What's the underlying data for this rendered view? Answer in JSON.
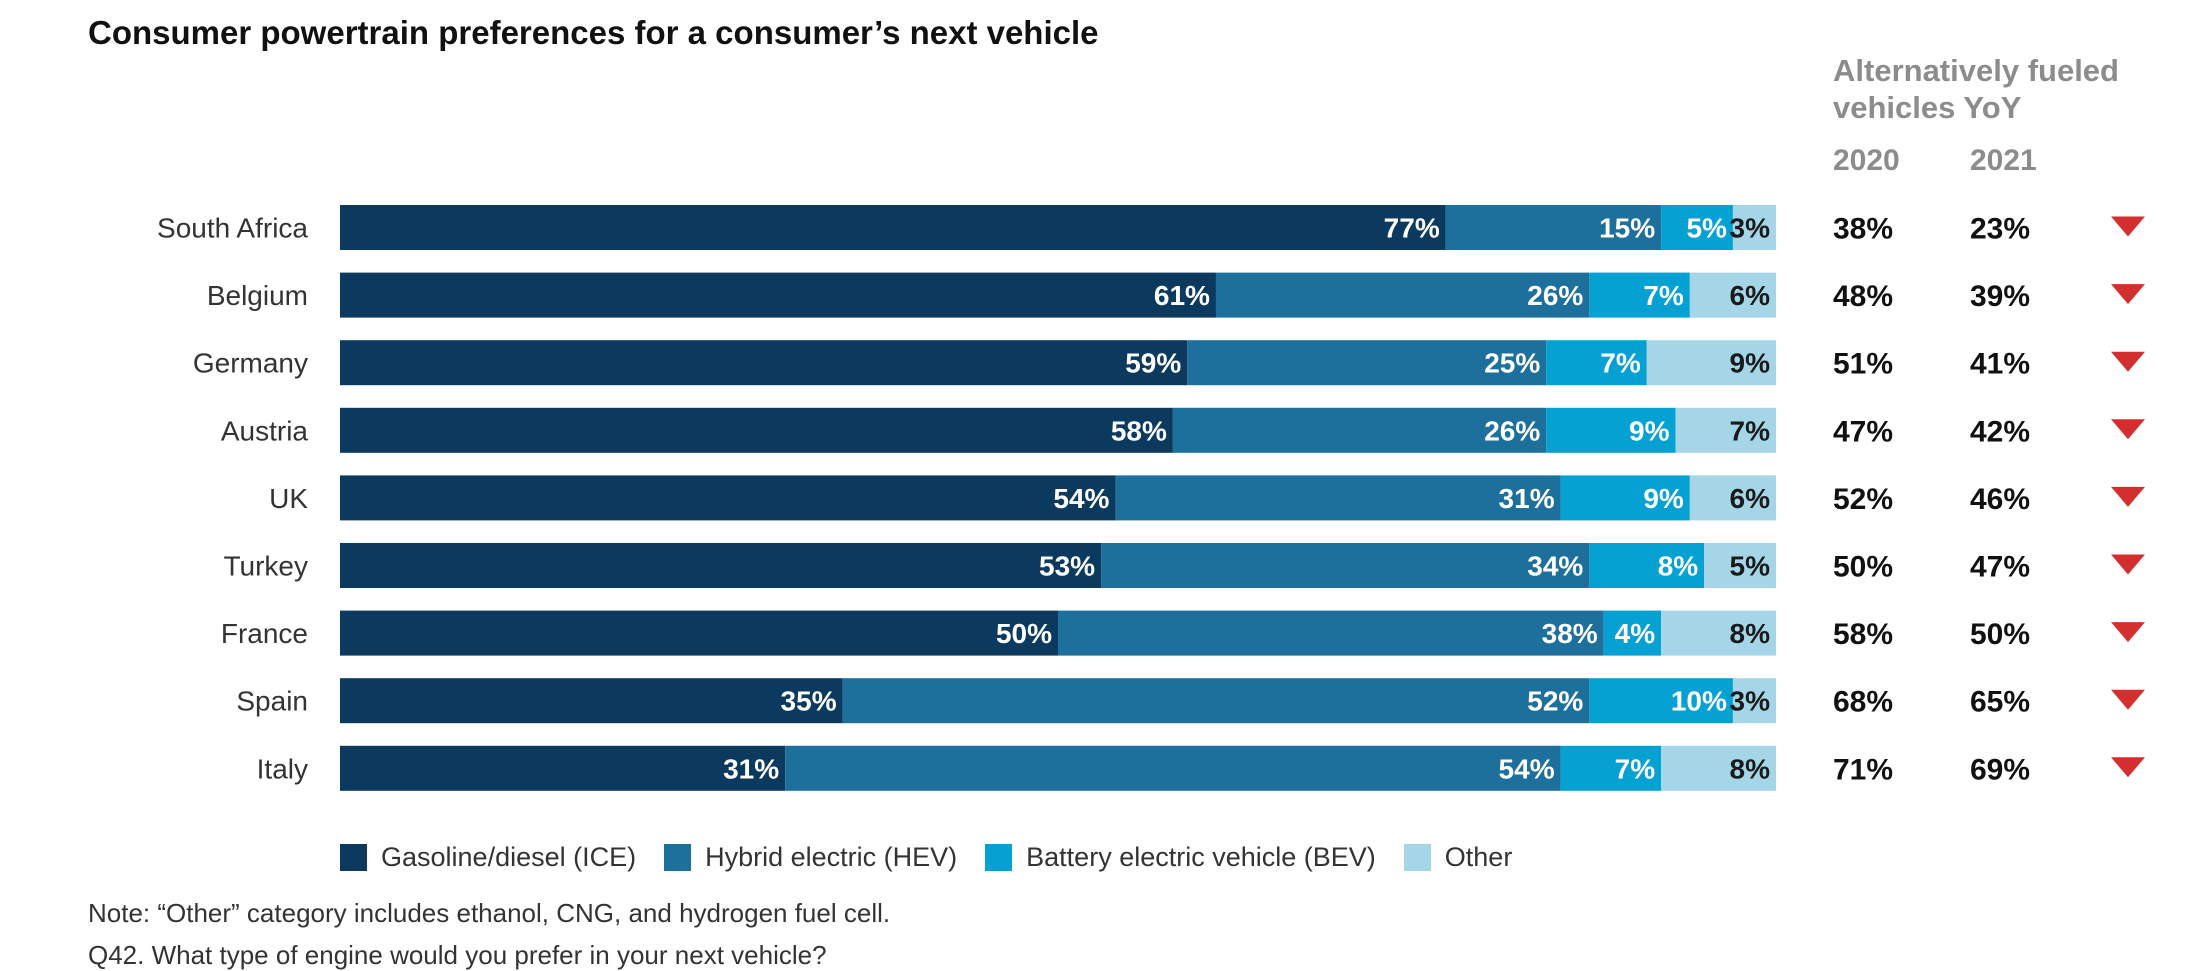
{
  "chart_data": {
    "type": "bar",
    "orientation": "horizontal",
    "stacked": true,
    "title": "Consumer powertrain preferences for a consumer’s next vehicle",
    "categories": [
      "South Africa",
      "Belgium",
      "Germany",
      "Austria",
      "UK",
      "Turkey",
      "France",
      "Spain",
      "Italy"
    ],
    "series": [
      {
        "name": "Gasoline/diesel (ICE)",
        "color": "#0b3a5e",
        "values": [
          77,
          61,
          59,
          58,
          54,
          53,
          50,
          35,
          31
        ]
      },
      {
        "name": "Hybrid electric (HEV)",
        "color": "#1d6f9c",
        "values": [
          15,
          26,
          25,
          26,
          31,
          34,
          38,
          52,
          54
        ]
      },
      {
        "name": "Battery electric vehicle (BEV)",
        "color": "#04a1d2",
        "values": [
          5,
          7,
          7,
          9,
          9,
          8,
          4,
          10,
          7
        ]
      },
      {
        "name": "Other",
        "color": "#a4d6e8",
        "values": [
          3,
          6,
          9,
          7,
          6,
          5,
          8,
          3,
          8
        ]
      }
    ],
    "legend_position": "bottom",
    "grid": false,
    "yoy": {
      "title": "Alternatively fueled vehicles YoY",
      "year_labels": [
        "2020",
        "2021"
      ],
      "values_2020": [
        "38%",
        "48%",
        "51%",
        "47%",
        "52%",
        "50%",
        "58%",
        "68%",
        "71%"
      ],
      "values_2021": [
        "23%",
        "39%",
        "41%",
        "42%",
        "46%",
        "47%",
        "50%",
        "65%",
        "69%"
      ],
      "trend": "down",
      "trend_color": "#d32f2f"
    }
  },
  "note": "Note: “Other” category includes ethanol, CNG, and hydrogen fuel cell.",
  "note2": "Q42. What type of engine would you prefer in your next vehicle?"
}
